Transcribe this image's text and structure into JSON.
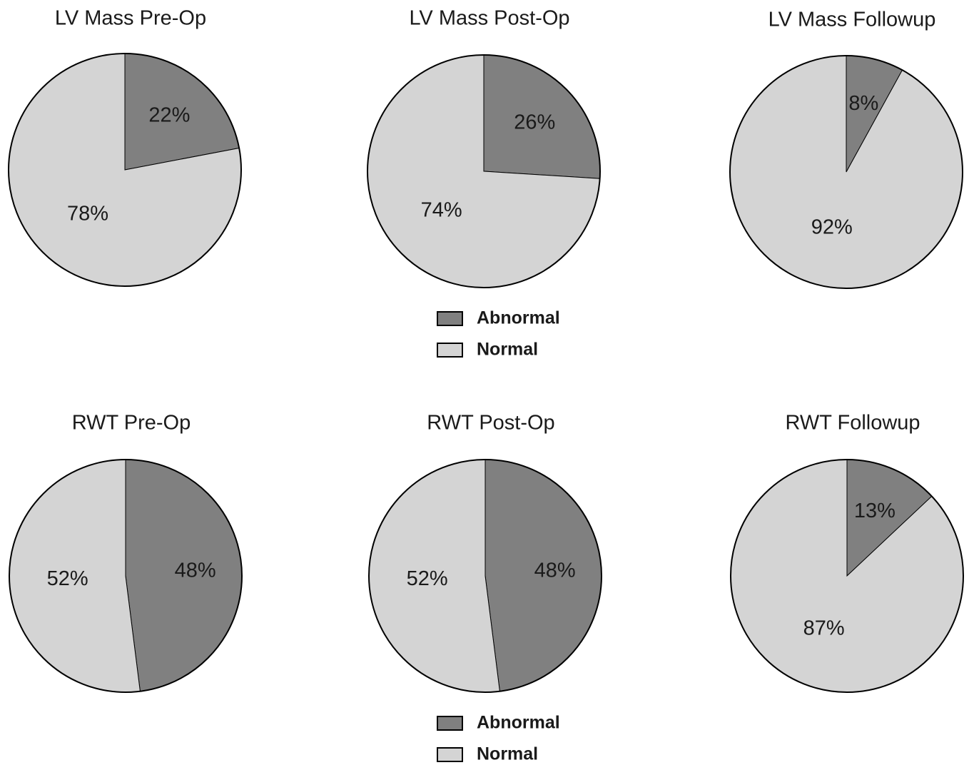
{
  "chart_data": [
    {
      "type": "pie",
      "title": "LV Mass Pre-Op",
      "categories": [
        "Abnormal",
        "Normal"
      ],
      "values": [
        22,
        78
      ],
      "value_labels": [
        "22%",
        "78%"
      ],
      "colors": [
        "#808080",
        "#d4d4d4"
      ]
    },
    {
      "type": "pie",
      "title": "LV Mass Post-Op",
      "categories": [
        "Abnormal",
        "Normal"
      ],
      "values": [
        26,
        74
      ],
      "value_labels": [
        "26%",
        "74%"
      ],
      "colors": [
        "#808080",
        "#d4d4d4"
      ]
    },
    {
      "type": "pie",
      "title": "LV Mass Followup",
      "categories": [
        "Abnormal",
        "Normal"
      ],
      "values": [
        8,
        92
      ],
      "value_labels": [
        "8%",
        "92%"
      ],
      "colors": [
        "#808080",
        "#d4d4d4"
      ]
    },
    {
      "type": "pie",
      "title": "RWT Pre-Op",
      "categories": [
        "Abnormal",
        "Normal"
      ],
      "values": [
        48,
        52
      ],
      "value_labels": [
        "48%",
        "52%"
      ],
      "colors": [
        "#808080",
        "#d4d4d4"
      ]
    },
    {
      "type": "pie",
      "title": "RWT Post-Op",
      "categories": [
        "Abnormal",
        "Normal"
      ],
      "values": [
        48,
        52
      ],
      "value_labels": [
        "48%",
        "52%"
      ],
      "colors": [
        "#808080",
        "#d4d4d4"
      ]
    },
    {
      "type": "pie",
      "title": "RWT Followup",
      "categories": [
        "Abnormal",
        "Normal"
      ],
      "values": [
        13,
        87
      ],
      "value_labels": [
        "13%",
        "87%"
      ],
      "colors": [
        "#808080",
        "#d4d4d4"
      ]
    }
  ]
}
